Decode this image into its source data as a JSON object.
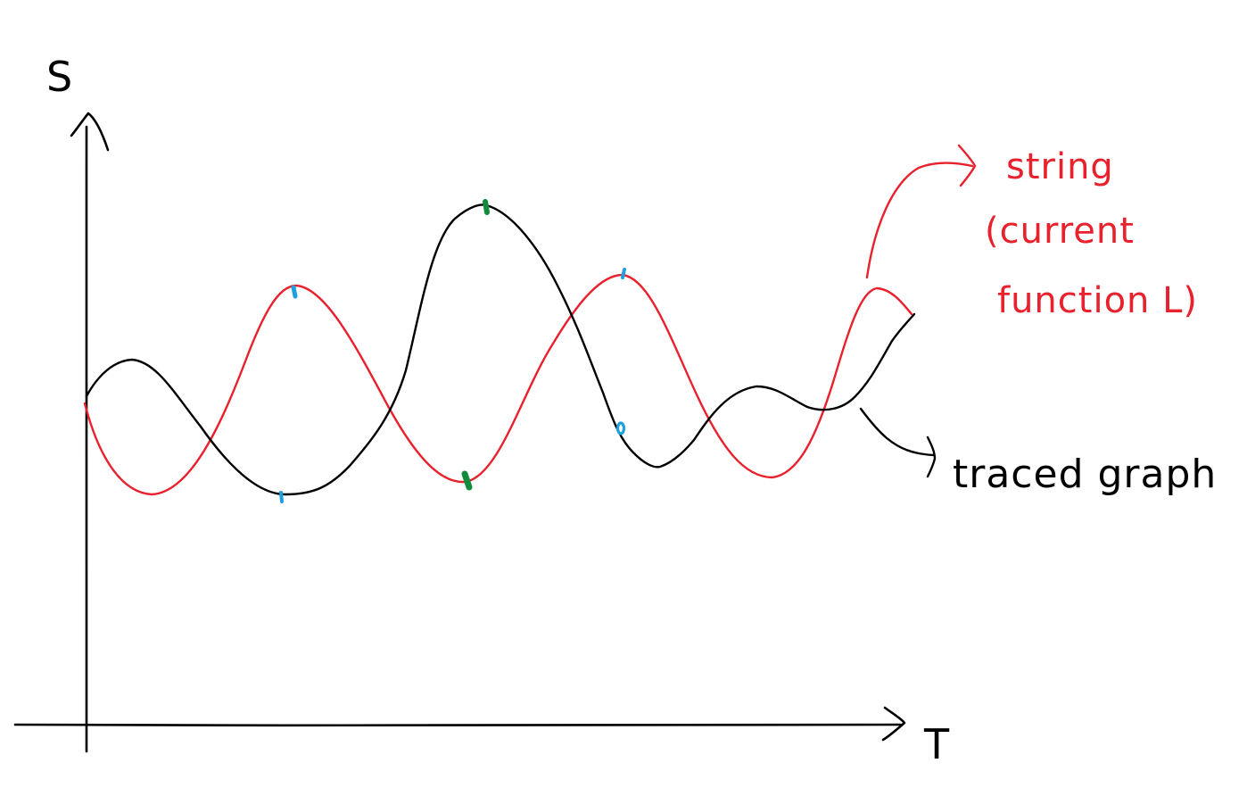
{
  "axes": {
    "y_label": "S",
    "x_label": "T"
  },
  "annotations": {
    "string_lines": [
      "string",
      "(current",
      "function L)"
    ],
    "traced_label": "traced graph"
  },
  "colors": {
    "background": "#ffffff",
    "ink": "#000000",
    "string": "#e8212d",
    "blue_marks": "#1ea0dc",
    "green_marks": "#118c3c"
  }
}
